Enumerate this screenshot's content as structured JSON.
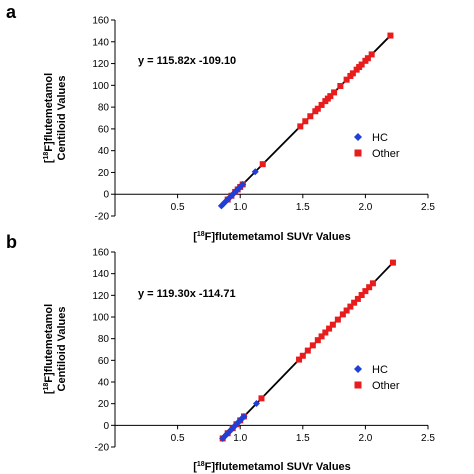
{
  "chart_data": [
    {
      "panel": "a",
      "type": "scatter",
      "equation": "y = 115.82x -109.10",
      "xlabel_pre": "[",
      "xlabel_sup": "18",
      "xlabel_post": "F]flutemetamol SUVr Values",
      "ylabel_line1_pre": "[",
      "ylabel_line1_sup": "18",
      "ylabel_line1_post": "F]flutemetamol",
      "ylabel_line2": "Centiloid Values",
      "xlim": [
        0,
        2.5
      ],
      "ylim": [
        -20,
        160
      ],
      "x_ticks": [
        0.5,
        1.0,
        1.5,
        2.0,
        2.5
      ],
      "x_tick_labels": [
        "0.5",
        "1.0",
        "1.5",
        "2.0",
        "2.5"
      ],
      "y_ticks": [
        -20,
        0,
        20,
        40,
        60,
        80,
        100,
        120,
        140,
        160
      ],
      "y_tick_labels": [
        "-20",
        "0",
        "20",
        "40",
        "60",
        "80",
        "100",
        "120",
        "140",
        "160"
      ],
      "fit": {
        "slope": 115.82,
        "intercept": -109.1,
        "x_range": [
          0.85,
          2.2
        ]
      },
      "series": [
        {
          "name": "HC",
          "marker": "diamond",
          "color": "#1f3fd6",
          "x": [
            0.85,
            0.86,
            0.87,
            0.88,
            0.89,
            0.9,
            0.91,
            0.92,
            0.93,
            0.94,
            0.95,
            0.96,
            0.97,
            0.98,
            0.99,
            1.0,
            1.01,
            1.02,
            1.12
          ],
          "y": [
            -10.7,
            -9.5,
            -8.3,
            -7.2,
            -6.0,
            -4.9,
            -3.7,
            -2.5,
            -1.4,
            -0.2,
            0.9,
            2.1,
            3.2,
            4.4,
            5.6,
            6.7,
            7.9,
            9.0,
            20.6
          ]
        },
        {
          "name": "Other",
          "marker": "square",
          "color": "#e81c1c",
          "x": [
            0.9,
            0.93,
            0.96,
            0.98,
            1.0,
            1.02,
            1.18,
            1.48,
            1.52,
            1.56,
            1.6,
            1.62,
            1.65,
            1.68,
            1.7,
            1.72,
            1.75,
            1.8,
            1.85,
            1.88,
            1.9,
            1.93,
            1.95,
            1.97,
            2.0,
            2.02,
            2.05,
            2.2
          ],
          "y": [
            -4.9,
            -1.4,
            2.1,
            4.4,
            6.7,
            9.0,
            27.6,
            62.3,
            67.0,
            71.6,
            76.2,
            78.5,
            82.0,
            85.5,
            87.8,
            90.1,
            93.5,
            99.4,
            105.2,
            108.6,
            111.0,
            114.4,
            116.8,
            119.1,
            122.5,
            124.9,
            128.4,
            145.7
          ]
        }
      ]
    },
    {
      "panel": "b",
      "type": "scatter",
      "equation": "y = 119.30x -114.71",
      "xlabel_pre": "[",
      "xlabel_sup": "18",
      "xlabel_post": "F]flutemetamol SUVr Values",
      "ylabel_line1_pre": "[",
      "ylabel_line1_sup": "18",
      "ylabel_line1_post": "F]flutemetamol",
      "ylabel_line2": "Centiloid Values",
      "xlim": [
        0,
        2.5
      ],
      "ylim": [
        -20,
        160
      ],
      "x_ticks": [
        0.5,
        1.0,
        1.5,
        2.0,
        2.5
      ],
      "x_tick_labels": [
        "0.5",
        "1.0",
        "1.5",
        "2.0",
        "2.5"
      ],
      "y_ticks": [
        -20,
        0,
        20,
        40,
        60,
        80,
        100,
        120,
        140,
        160
      ],
      "y_tick_labels": [
        "-20",
        "0",
        "20",
        "40",
        "60",
        "80",
        "100",
        "120",
        "140",
        "160"
      ],
      "fit": {
        "slope": 119.3,
        "intercept": -114.71,
        "x_range": [
          0.86,
          2.22
        ]
      },
      "series": [
        {
          "name": "HC",
          "marker": "diamond",
          "color": "#1f3fd6",
          "x": [
            0.86,
            0.87,
            0.88,
            0.89,
            0.9,
            0.91,
            0.92,
            0.93,
            0.94,
            0.95,
            0.96,
            0.97,
            0.98,
            0.99,
            1.0,
            1.01,
            1.02,
            1.03,
            1.13
          ],
          "y": [
            -12.1,
            -10.9,
            -9.7,
            -8.5,
            -7.3,
            -6.1,
            -4.9,
            -3.8,
            -2.6,
            -1.4,
            -0.2,
            1.0,
            2.2,
            3.4,
            4.6,
            5.8,
            7.0,
            8.2,
            20.1
          ]
        },
        {
          "name": "Other",
          "marker": "square",
          "color": "#e81c1c",
          "x": [
            0.86,
            0.9,
            0.94,
            0.97,
            1.0,
            1.03,
            1.17,
            1.47,
            1.5,
            1.54,
            1.58,
            1.62,
            1.65,
            1.68,
            1.71,
            1.74,
            1.78,
            1.82,
            1.85,
            1.88,
            1.91,
            1.94,
            1.97,
            2.0,
            2.03,
            2.06,
            2.22
          ],
          "y": [
            -12.1,
            -7.3,
            -2.6,
            1.0,
            4.6,
            8.2,
            24.9,
            60.7,
            64.2,
            69.0,
            73.8,
            78.6,
            82.1,
            85.7,
            89.3,
            92.9,
            97.6,
            102.4,
            106.0,
            109.6,
            113.2,
            116.7,
            120.3,
            123.9,
            127.5,
            131.1,
            150.2
          ]
        }
      ]
    }
  ],
  "panel_a": {
    "letter": "a",
    "legend_hc": "HC",
    "legend_other": "Other"
  },
  "panel_b": {
    "letter": "b",
    "legend_hc": "HC",
    "legend_other": "Other"
  }
}
